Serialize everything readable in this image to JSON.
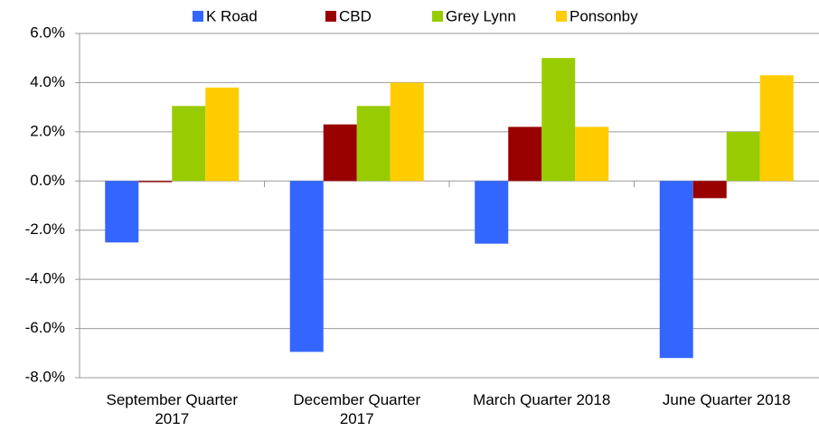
{
  "chart_data": {
    "type": "bar",
    "categories": [
      "September Quarter 2017",
      "December Quarter 2017",
      "March Quarter 2018",
      "June Quarter 2018"
    ],
    "series": [
      {
        "name": "K Road",
        "color": "#3366ff",
        "values": [
          -2.5,
          -6.95,
          -2.55,
          -7.2
        ]
      },
      {
        "name": "CBD",
        "color": "#990000",
        "values": [
          -0.05,
          2.3,
          2.2,
          -0.7
        ]
      },
      {
        "name": "Grey Lynn",
        "color": "#99cc00",
        "values": [
          3.05,
          3.05,
          5.0,
          2.0
        ]
      },
      {
        "name": "Ponsonby",
        "color": "#ffcc00",
        "values": [
          3.8,
          4.0,
          2.2,
          4.3
        ]
      }
    ],
    "ylim": [
      -8,
      6
    ],
    "yticks": [
      {
        "value": -8,
        "label": "-8.0%"
      },
      {
        "value": -6,
        "label": "-6.0%"
      },
      {
        "value": -4,
        "label": "-4.0%"
      },
      {
        "value": -2,
        "label": "-2.0%"
      },
      {
        "value": 0,
        "label": "0.0%"
      },
      {
        "value": 2,
        "label": "2.0%"
      },
      {
        "value": 4,
        "label": "4.0%"
      },
      {
        "value": 6,
        "label": "6.0%"
      }
    ],
    "grid": true,
    "legend": "top"
  }
}
